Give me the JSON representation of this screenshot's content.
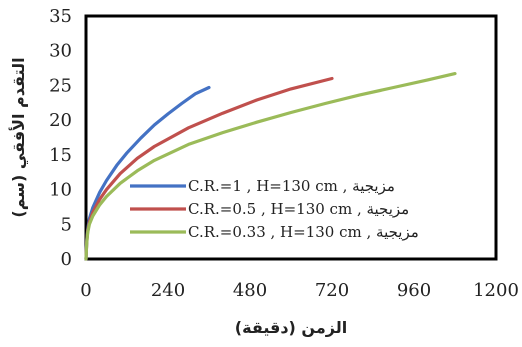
{
  "chart_data": {
    "type": "line",
    "xlabel": "الزمن (دقيقة)",
    "ylabel": "التقدم الأفقي (سم)",
    "xlim": [
      0,
      1200
    ],
    "ylim": [
      0,
      35
    ],
    "xticks": [
      0,
      240,
      480,
      720,
      960,
      1200
    ],
    "yticks": [
      0,
      5,
      10,
      15,
      20,
      25,
      30,
      35
    ],
    "grid": false,
    "legend_position": "lower-right inside plot",
    "series": [
      {
        "name": "C.R.=1 , H=130 cm , مزيجية",
        "color": "#4472C4",
        "x": [
          0,
          2,
          5,
          10,
          20,
          40,
          60,
          90,
          120,
          160,
          200,
          240,
          280,
          320,
          360
        ],
        "y": [
          0,
          2.6,
          4.2,
          5.8,
          7.4,
          9.6,
          11.3,
          13.5,
          15.3,
          17.4,
          19.3,
          20.9,
          22.4,
          23.8,
          24.7
        ]
      },
      {
        "name": "C.R.=0.5 , H=130 cm , مزيجية",
        "color": "#C0504D",
        "x": [
          0,
          2,
          5,
          10,
          20,
          40,
          60,
          100,
          150,
          200,
          300,
          400,
          500,
          600,
          720
        ],
        "y": [
          0,
          2.4,
          4.0,
          5.3,
          6.7,
          8.6,
          10.0,
          12.3,
          14.5,
          16.2,
          18.9,
          21.0,
          22.9,
          24.5,
          26.0
        ]
      },
      {
        "name": "C.R.=0.33 , H=130 cm , مزيجية",
        "color": "#9BBB59",
        "x": [
          0,
          2,
          5,
          10,
          20,
          40,
          60,
          100,
          150,
          200,
          300,
          400,
          500,
          600,
          700,
          800,
          900,
          1000,
          1080
        ],
        "y": [
          0,
          2.2,
          3.8,
          5.0,
          6.2,
          7.8,
          9.0,
          10.9,
          12.7,
          14.2,
          16.5,
          18.2,
          19.7,
          21.1,
          22.4,
          23.6,
          24.7,
          25.8,
          26.7
        ]
      }
    ]
  }
}
